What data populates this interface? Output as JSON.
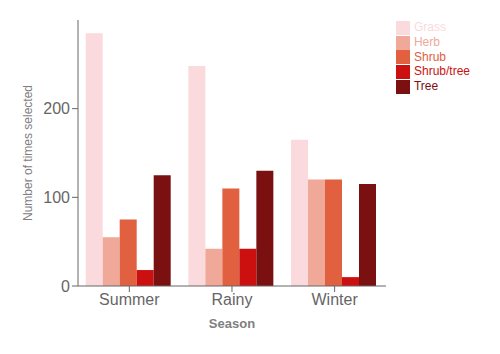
{
  "chart_data": {
    "type": "bar",
    "xlabel": "Season",
    "ylabel": "Number of times selected",
    "categories": [
      "Summer",
      "Rainy",
      "Winter"
    ],
    "series": [
      {
        "name": "Grass",
        "color": "#FADADD",
        "values": [
          285,
          248,
          165
        ]
      },
      {
        "name": "Herb",
        "color": "#F0A899",
        "values": [
          55,
          42,
          120
        ]
      },
      {
        "name": "Shrub",
        "color": "#E06040",
        "values": [
          75,
          110,
          120
        ]
      },
      {
        "name": "Shrub/tree",
        "color": "#CC1010",
        "values": [
          18,
          42,
          10
        ]
      },
      {
        "name": "Tree",
        "color": "#7A1010",
        "values": [
          125,
          130,
          115
        ]
      }
    ],
    "ylim": [
      0,
      300
    ],
    "yticks": [
      0,
      100,
      200
    ],
    "legend": "upper right",
    "grid": false
  }
}
